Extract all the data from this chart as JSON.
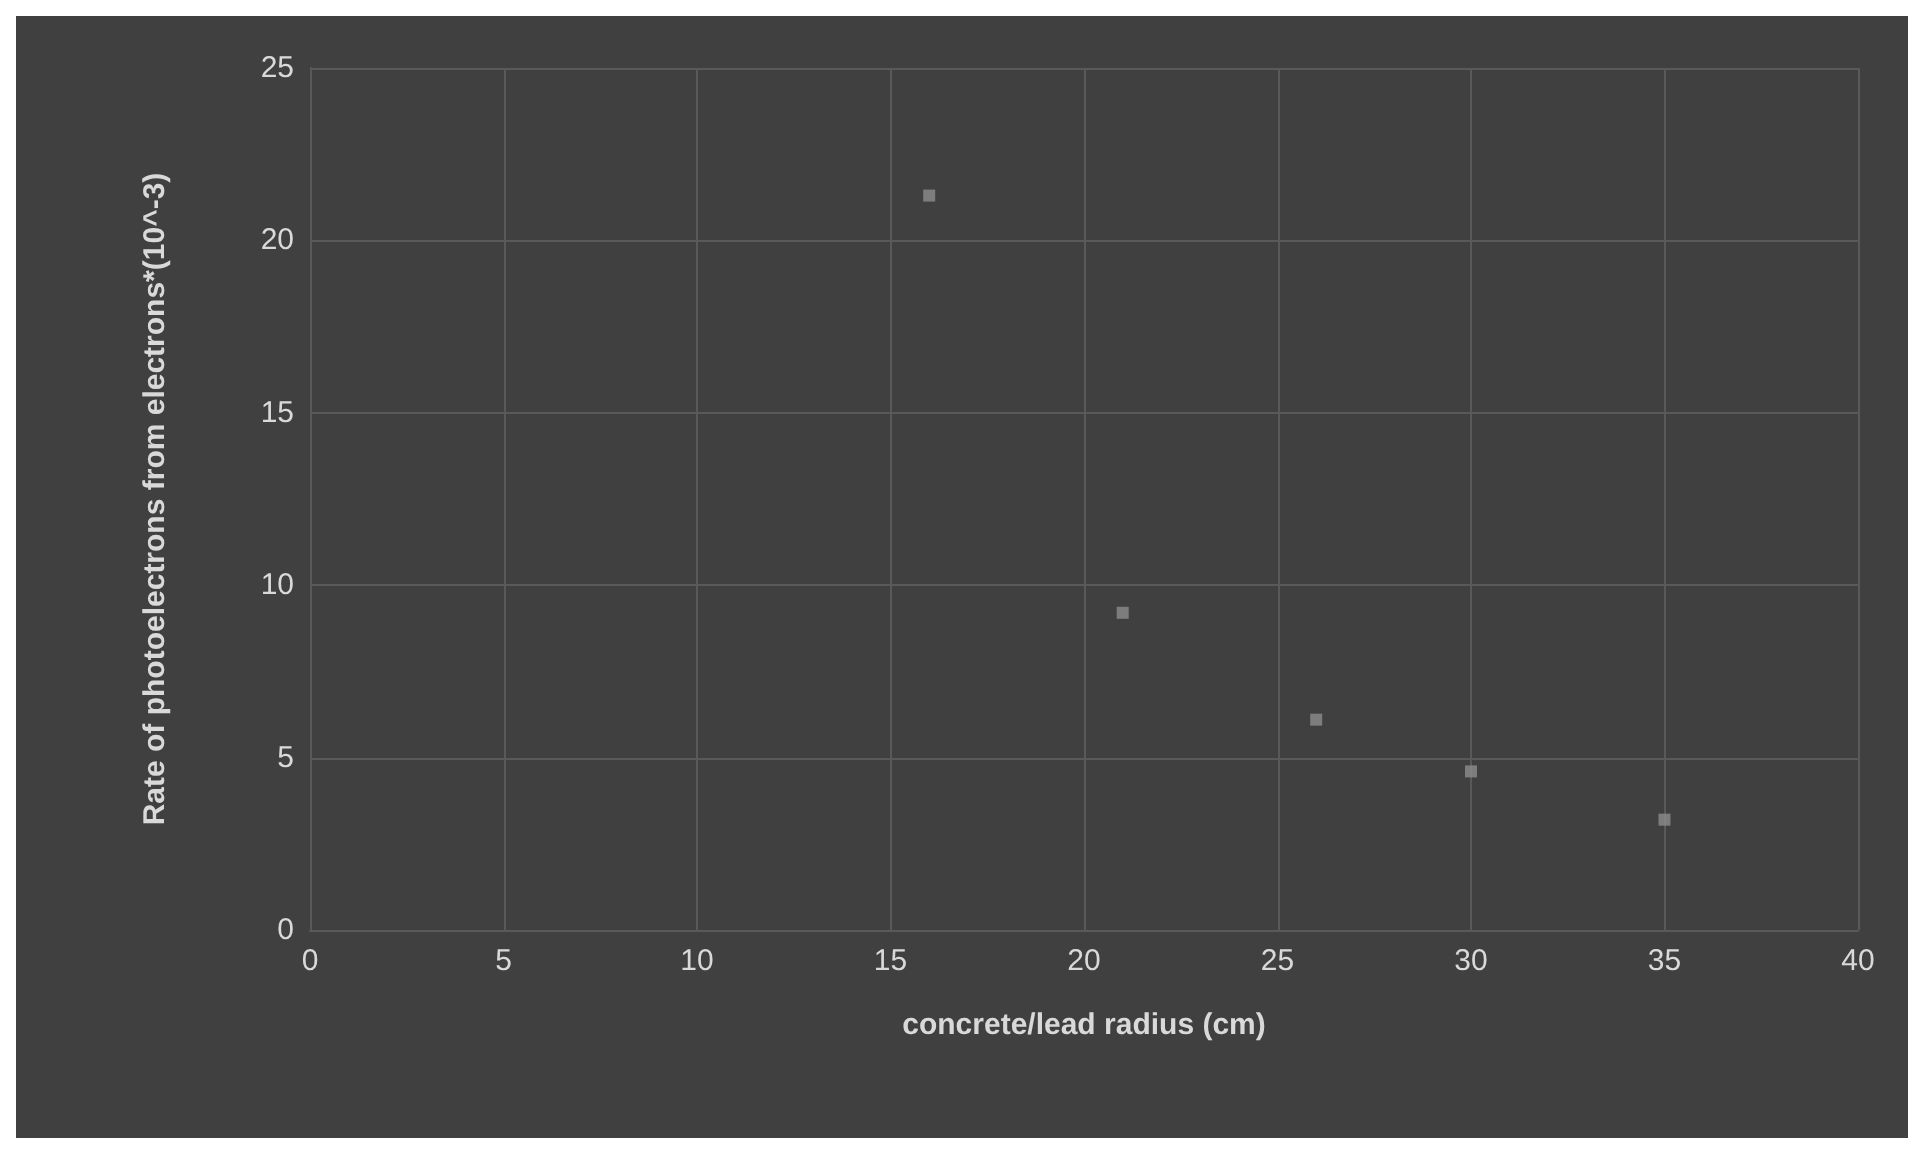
{
  "chart_data": {
    "type": "scatter",
    "xlabel": "concrete/lead radius (cm)",
    "ylabel": "Rate of photoelectrons from electrons*(10^-3)",
    "x": [
      16,
      21,
      26,
      30,
      35
    ],
    "series": [
      {
        "color": "#8c8c8c",
        "values": [
          21.3,
          9.2,
          6.1,
          4.6,
          3.2
        ]
      }
    ],
    "xlim": [
      0,
      40
    ],
    "xticks": [
      0,
      5,
      10,
      15,
      20,
      25,
      30,
      35,
      40
    ],
    "ylim": [
      0,
      25
    ],
    "yticks": [
      0,
      5,
      10,
      15,
      20,
      25
    ],
    "grid": true,
    "marker": "square"
  }
}
